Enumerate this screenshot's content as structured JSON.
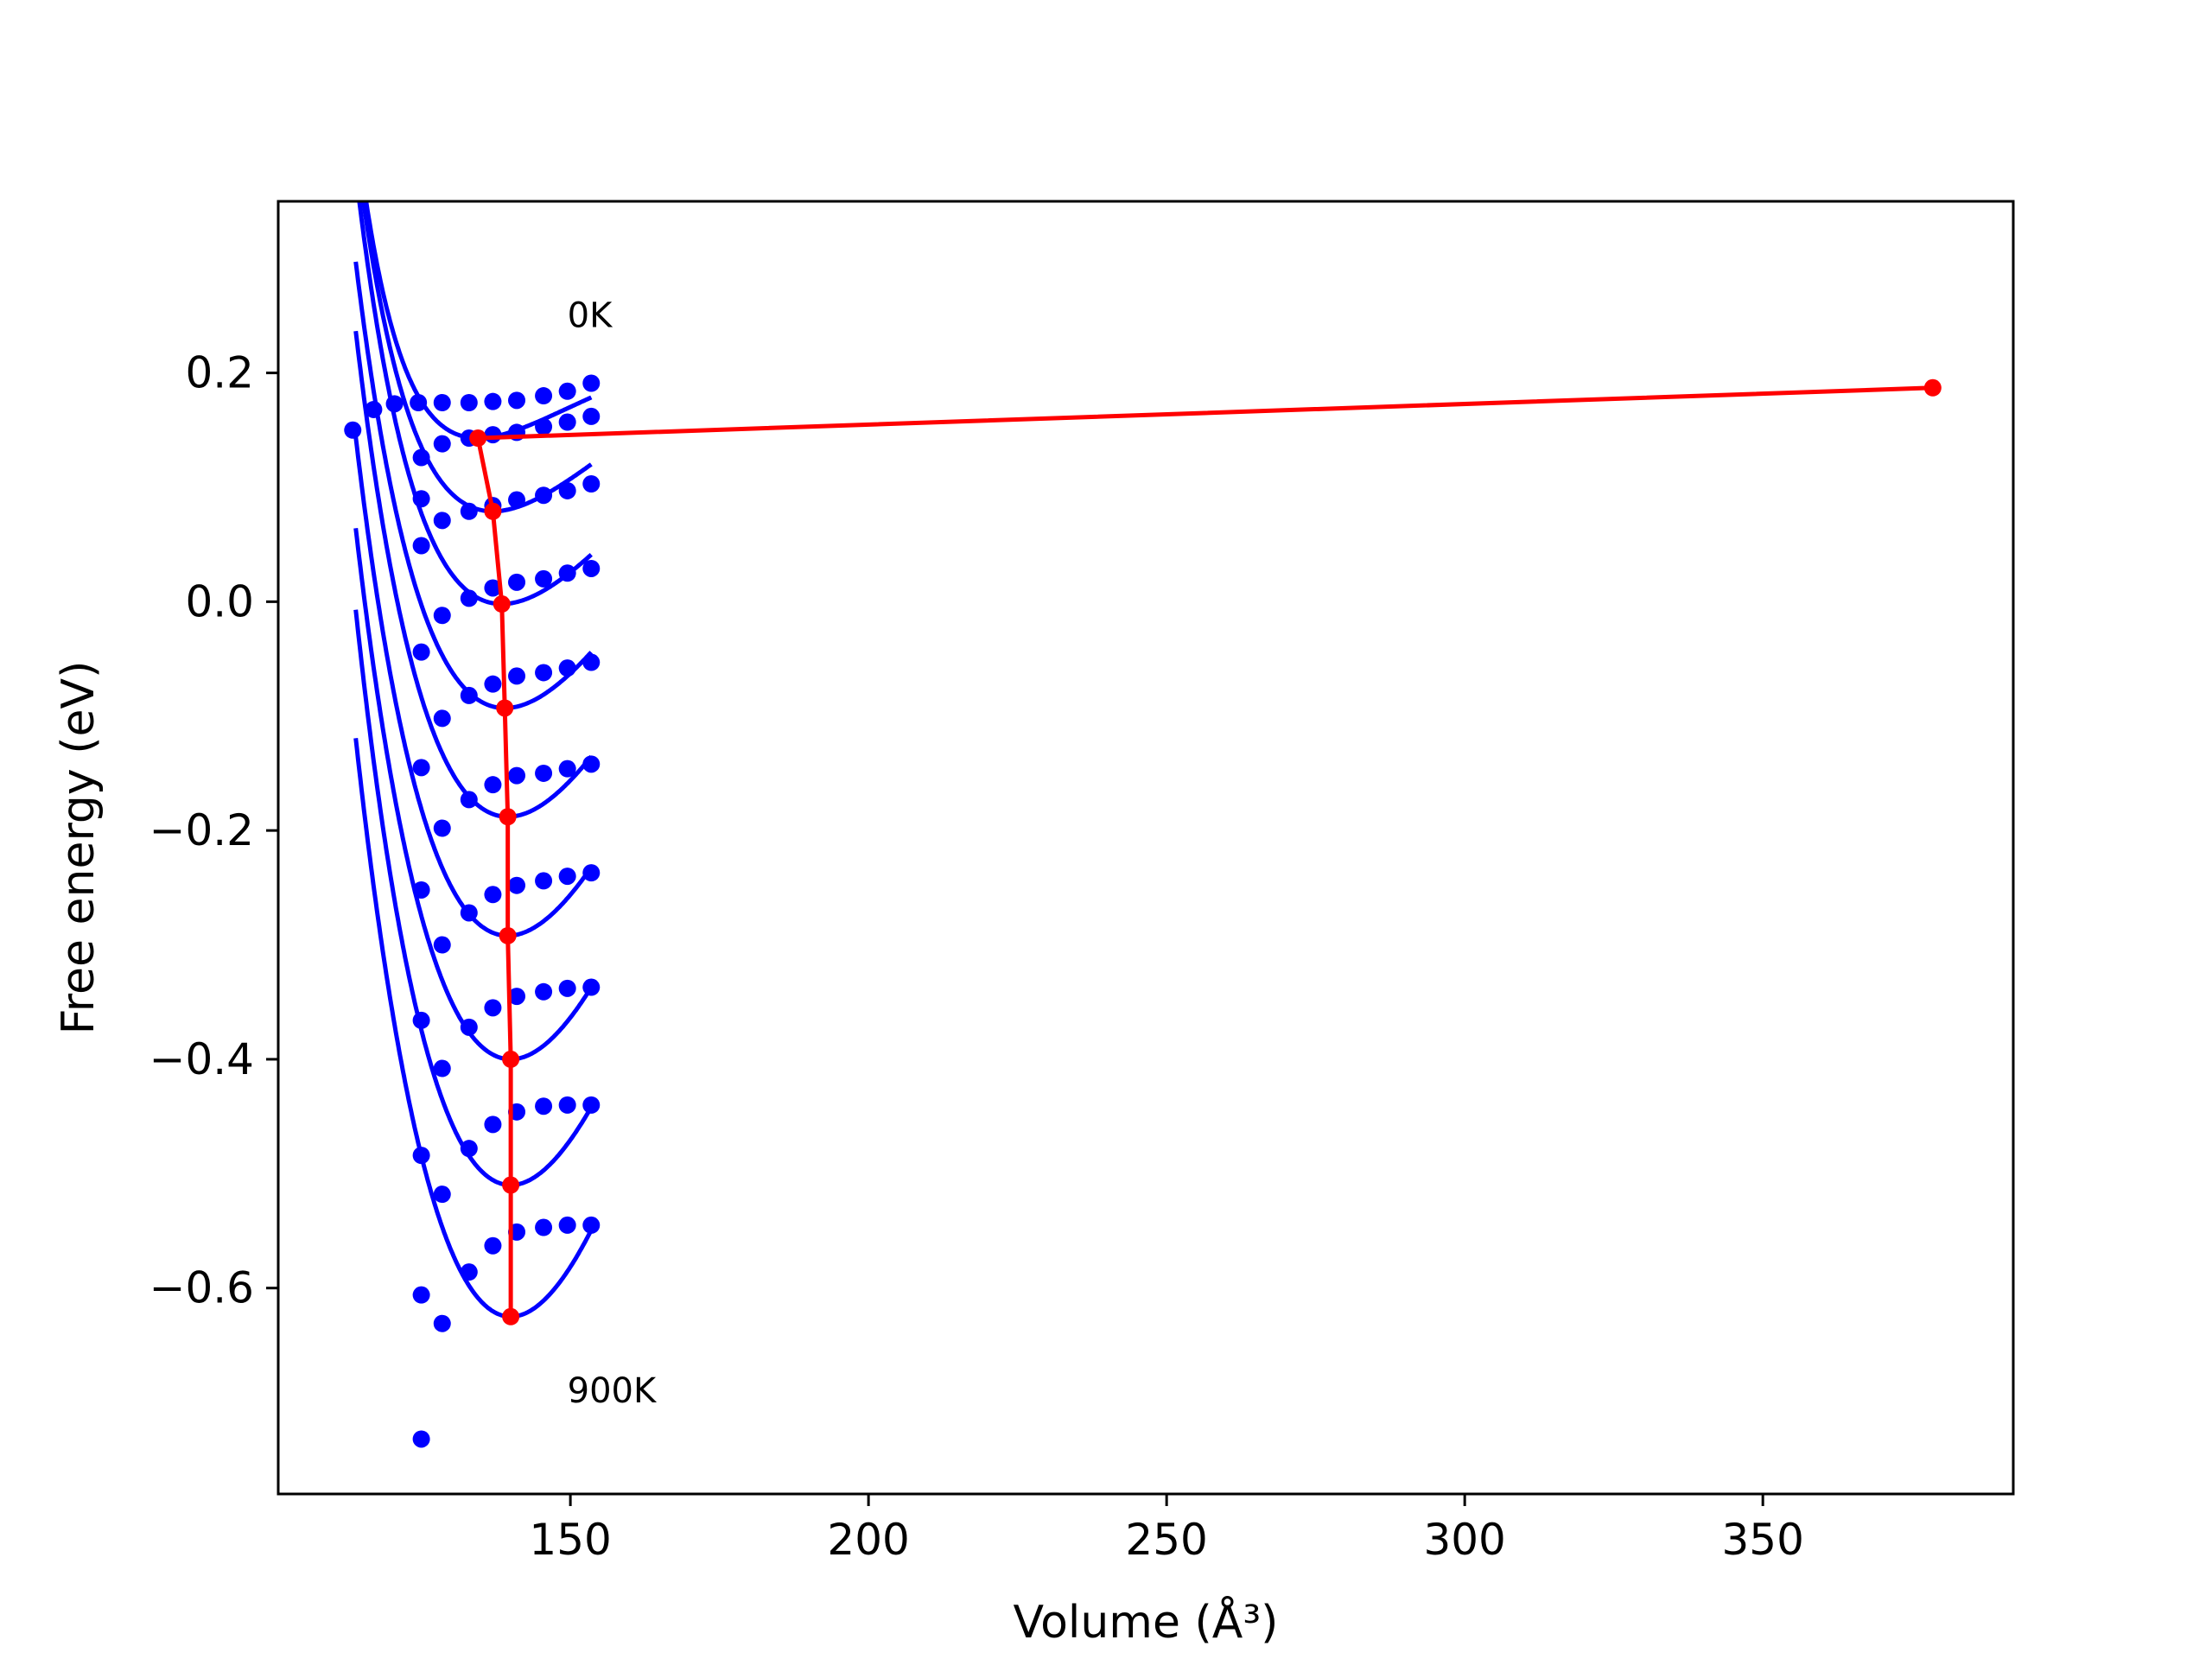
{
  "chart_data": {
    "type": "line",
    "xlabel": "Volume (Å³)",
    "ylabel": "Free energy (eV)",
    "xlim": [
      101,
      392
    ],
    "ylim": [
      -0.78,
      0.35
    ],
    "xticks": [
      150,
      200,
      250,
      300,
      350
    ],
    "xtick_labels": [
      "150",
      "200",
      "250",
      "300",
      "350"
    ],
    "yticks": [
      -0.6,
      -0.4,
      -0.2,
      0.0,
      0.2
    ],
    "ytick_labels": [
      "−0.6",
      "−0.4",
      "−0.2",
      "0.0",
      "0.2"
    ],
    "grid": false,
    "legend": "none",
    "annotations": [
      {
        "text": "0K",
        "x": 149.5,
        "y": 0.24
      },
      {
        "text": "900K",
        "x": 149.5,
        "y": -0.7
      }
    ],
    "colors": {
      "fit_curves": "#0000ff",
      "data_points": "#0000ff",
      "minimum_path": "#ff0000"
    },
    "temperature_series": [
      {
        "points": [
          [
            113.5,
            0.15
          ],
          [
            117,
            0.168
          ],
          [
            120.5,
            0.173
          ],
          [
            124.5,
            0.174
          ],
          [
            128.5,
            0.174
          ],
          [
            133,
            0.174
          ],
          [
            137,
            0.175
          ],
          [
            141,
            0.176
          ],
          [
            145.5,
            0.18
          ],
          [
            149.5,
            0.184
          ],
          [
            153.5,
            0.191
          ]
        ],
        "fit": {
          "vmin": 378.5,
          "fmin": 0.187,
          "B": 0.032,
          "Bp": 18,
          "vstart": 114,
          "vend": 153.5
        }
      },
      {
        "points": [
          [
            125,
            0.126
          ],
          [
            128.5,
            0.138
          ],
          [
            133,
            0.143
          ],
          [
            137,
            0.146
          ],
          [
            141,
            0.148
          ],
          [
            145.5,
            0.153
          ],
          [
            149.5,
            0.157
          ],
          [
            153.5,
            0.162
          ]
        ],
        "fit": {
          "vmin": 134.5,
          "fmin": 0.143,
          "B": 0.06,
          "Bp": 18,
          "vstart": 114,
          "vend": 153.5
        }
      },
      {
        "points": [
          [
            125,
            0.09
          ],
          [
            128.5,
            0.071
          ],
          [
            133,
            0.079
          ],
          [
            137,
            0.084
          ],
          [
            141,
            0.089
          ],
          [
            145.5,
            0.093
          ],
          [
            149.5,
            0.097
          ],
          [
            153.5,
            0.103
          ]
        ],
        "fit": {
          "vmin": 137,
          "fmin": 0.079,
          "B": 0.07,
          "Bp": 13,
          "vstart": 114,
          "vend": 153.5
        }
      },
      {
        "points": [
          [
            125,
            0.049
          ],
          [
            128.5,
            -0.012
          ],
          [
            133,
            0.003
          ],
          [
            137,
            0.012
          ],
          [
            141,
            0.017
          ],
          [
            145.5,
            0.02
          ],
          [
            149.5,
            0.025
          ],
          [
            153.5,
            0.029
          ]
        ],
        "fit": {
          "vmin": 138.5,
          "fmin": -0.002,
          "B": 0.08,
          "Bp": 11,
          "vstart": 114,
          "vend": 153.5
        }
      },
      {
        "points": [
          [
            125,
            -0.044
          ],
          [
            128.5,
            -0.102
          ],
          [
            133,
            -0.082
          ],
          [
            137,
            -0.072
          ],
          [
            141,
            -0.065
          ],
          [
            145.5,
            -0.062
          ],
          [
            149.5,
            -0.058
          ],
          [
            153.5,
            -0.053
          ]
        ],
        "fit": {
          "vmin": 139,
          "fmin": -0.093,
          "B": 0.09,
          "Bp": 9,
          "vstart": 114,
          "vend": 153.5
        }
      },
      {
        "points": [
          [
            125,
            -0.145
          ],
          [
            128.5,
            -0.198
          ],
          [
            133,
            -0.173
          ],
          [
            137,
            -0.16
          ],
          [
            141,
            -0.152
          ],
          [
            145.5,
            -0.15
          ],
          [
            149.5,
            -0.146
          ],
          [
            153.5,
            -0.142
          ]
        ],
        "fit": {
          "vmin": 139.5,
          "fmin": -0.188,
          "B": 0.1,
          "Bp": 8,
          "vstart": 114,
          "vend": 153.5
        }
      },
      {
        "points": [
          [
            125,
            -0.252
          ],
          [
            128.5,
            -0.3
          ],
          [
            133,
            -0.272
          ],
          [
            137,
            -0.256
          ],
          [
            141,
            -0.248
          ],
          [
            145.5,
            -0.244
          ],
          [
            149.5,
            -0.24
          ],
          [
            153.5,
            -0.237
          ]
        ],
        "fit": {
          "vmin": 139.5,
          "fmin": -0.292,
          "B": 0.11,
          "Bp": 7,
          "vstart": 114,
          "vend": 153.5
        }
      },
      {
        "points": [
          [
            125,
            -0.366
          ],
          [
            128.5,
            -0.408
          ],
          [
            133,
            -0.372
          ],
          [
            137,
            -0.355
          ],
          [
            141,
            -0.345
          ],
          [
            145.5,
            -0.341
          ],
          [
            149.5,
            -0.338
          ],
          [
            153.5,
            -0.337
          ]
        ],
        "fit": {
          "vmin": 140,
          "fmin": -0.4,
          "B": 0.12,
          "Bp": 6,
          "vstart": 114,
          "vend": 153.5
        }
      },
      {
        "points": [
          [
            125,
            -0.484
          ],
          [
            128.5,
            -0.518
          ],
          [
            133,
            -0.478
          ],
          [
            137,
            -0.457
          ],
          [
            141,
            -0.446
          ],
          [
            145.5,
            -0.441
          ],
          [
            149.5,
            -0.44
          ],
          [
            153.5,
            -0.44
          ]
        ],
        "fit": {
          "vmin": 140,
          "fmin": -0.51,
          "B": 0.13,
          "Bp": 6,
          "vstart": 114,
          "vend": 153.5
        }
      },
      {
        "points": [
          [
            125,
            -0.606
          ],
          [
            128.5,
            -0.631
          ],
          [
            133,
            -0.586
          ],
          [
            137,
            -0.563
          ],
          [
            141,
            -0.551
          ],
          [
            145.5,
            -0.547
          ],
          [
            149.5,
            -0.545
          ],
          [
            153.5,
            -0.545
          ]
        ],
        "fit": {
          "vmin": 140,
          "fmin": -0.625,
          "B": 0.14,
          "Bp": 5,
          "vstart": 114,
          "vend": 153.5
        }
      },
      {
        "points": [
          [
            125,
            -0.732
          ]
        ],
        "fit": null
      }
    ],
    "minimum_path": [
      [
        378.5,
        0.187
      ],
      [
        134.5,
        0.143
      ],
      [
        137,
        0.079
      ],
      [
        138.5,
        -0.002
      ],
      [
        139,
        -0.093
      ],
      [
        139.5,
        -0.188
      ],
      [
        139.5,
        -0.292
      ],
      [
        140,
        -0.4
      ],
      [
        140,
        -0.51
      ],
      [
        140,
        -0.625
      ]
    ]
  }
}
